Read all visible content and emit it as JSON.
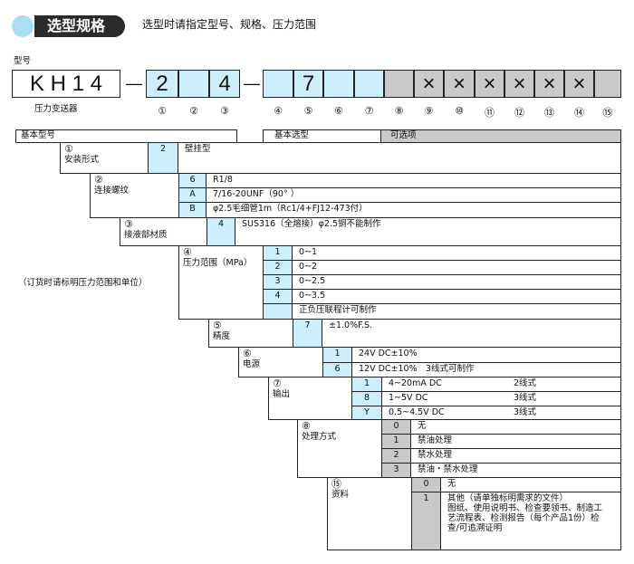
{
  "header": {
    "title": "选型规格",
    "subtitle": "选型时请指定型号、规格、压力范围",
    "accent": "#a9def4",
    "label_bg": "#2b2b2b"
  },
  "model": {
    "label": "型号",
    "base": "K H 1 4",
    "base_caption": "压力变送器",
    "dash": "—",
    "boxes": [
      {
        "value": "2",
        "fill": "basic"
      },
      {
        "value": "",
        "fill": "basic"
      },
      {
        "value": "4",
        "fill": "basic"
      },
      {
        "value": "",
        "fill": "basic"
      },
      {
        "value": "7",
        "fill": "basic"
      },
      {
        "value": "",
        "fill": "basic"
      },
      {
        "value": "",
        "fill": "basic"
      },
      {
        "value": "",
        "fill": "option"
      },
      {
        "value": "×",
        "fill": "option"
      },
      {
        "value": "×",
        "fill": "option"
      },
      {
        "value": "×",
        "fill": "option"
      },
      {
        "value": "×",
        "fill": "option"
      },
      {
        "value": "×",
        "fill": "option"
      },
      {
        "value": "×",
        "fill": "option"
      },
      {
        "value": "",
        "fill": "option"
      }
    ],
    "positions": [
      "①",
      "②",
      "③",
      "④",
      "⑤",
      "⑥",
      "⑦",
      "⑧",
      "⑨",
      "⑩",
      "⑪",
      "⑫",
      "⑬",
      "⑭",
      "⑮"
    ]
  },
  "table": {
    "basic_model": "基本型号",
    "basic_select": "基本选型",
    "options": "可选项",
    "note": "（订货时请标明压力范围和单位）",
    "colors": {
      "basic": "#cdeefb",
      "option": "#c9c9c9"
    },
    "sections": [
      {
        "num": "①",
        "label": "安装形式",
        "rows": [
          {
            "code": "2",
            "desc": "壁挂型"
          }
        ]
      },
      {
        "num": "②",
        "label": "连接螺纹",
        "rows": [
          {
            "code": "6",
            "desc": "R1/8"
          },
          {
            "code": "A",
            "desc": "7/16-20UNF（90°  ）"
          },
          {
            "code": "B",
            "desc": "φ2.5毛细管1m（Rc1/4+FJ12-473付）"
          }
        ]
      },
      {
        "num": "③",
        "label": "接液部材质",
        "rows": [
          {
            "code": "4",
            "desc": "SUS316（全熔接）φ2.5铜不能制作"
          }
        ]
      },
      {
        "num": "④",
        "label": "压力范围（MPa）",
        "rows": [
          {
            "code": "1",
            "desc": "0~1"
          },
          {
            "code": "2",
            "desc": "0~2"
          },
          {
            "code": "3",
            "desc": "0~2.5"
          },
          {
            "code": "4",
            "desc": "0~3.5"
          },
          {
            "code": "",
            "desc": "正负压联程计可制作"
          }
        ]
      },
      {
        "num": "⑤",
        "label": "精度",
        "rows": [
          {
            "code": "7",
            "desc": "±1.0%F.S."
          }
        ]
      },
      {
        "num": "⑥",
        "label": "电源",
        "rows": [
          {
            "code": "1",
            "desc": "24V DC±10%"
          },
          {
            "code": "6",
            "desc": "12V DC±10%",
            "desc2": "3线式可制作"
          }
        ]
      },
      {
        "num": "⑦",
        "label": "输出",
        "rows": [
          {
            "code": "1",
            "desc": "4~20mA DC",
            "desc2": "2线式"
          },
          {
            "code": "8",
            "desc": "1~5V DC",
            "desc2": "3线式"
          },
          {
            "code": "Y",
            "desc": "0.5~4.5V DC",
            "desc2": "3线式"
          }
        ]
      },
      {
        "num": "⑧",
        "label": "处理方式",
        "rows": [
          {
            "code": "0",
            "desc": "无"
          },
          {
            "code": "1",
            "desc": "禁油处理"
          },
          {
            "code": "2",
            "desc": "禁水处理"
          },
          {
            "code": "3",
            "desc": "禁油・禁水处理"
          }
        ]
      },
      {
        "num": "⑮",
        "label": "资料",
        "rows": [
          {
            "code": "0",
            "desc": "无"
          },
          {
            "code": "1",
            "lines": [
              "其他（请单独标明需求的文件）",
              "图纸、使用说明书、检查要领书、制造工",
              "艺流程表、检测报告（每个产品1份）检",
              "查/可追溯证明"
            ]
          }
        ]
      }
    ]
  }
}
